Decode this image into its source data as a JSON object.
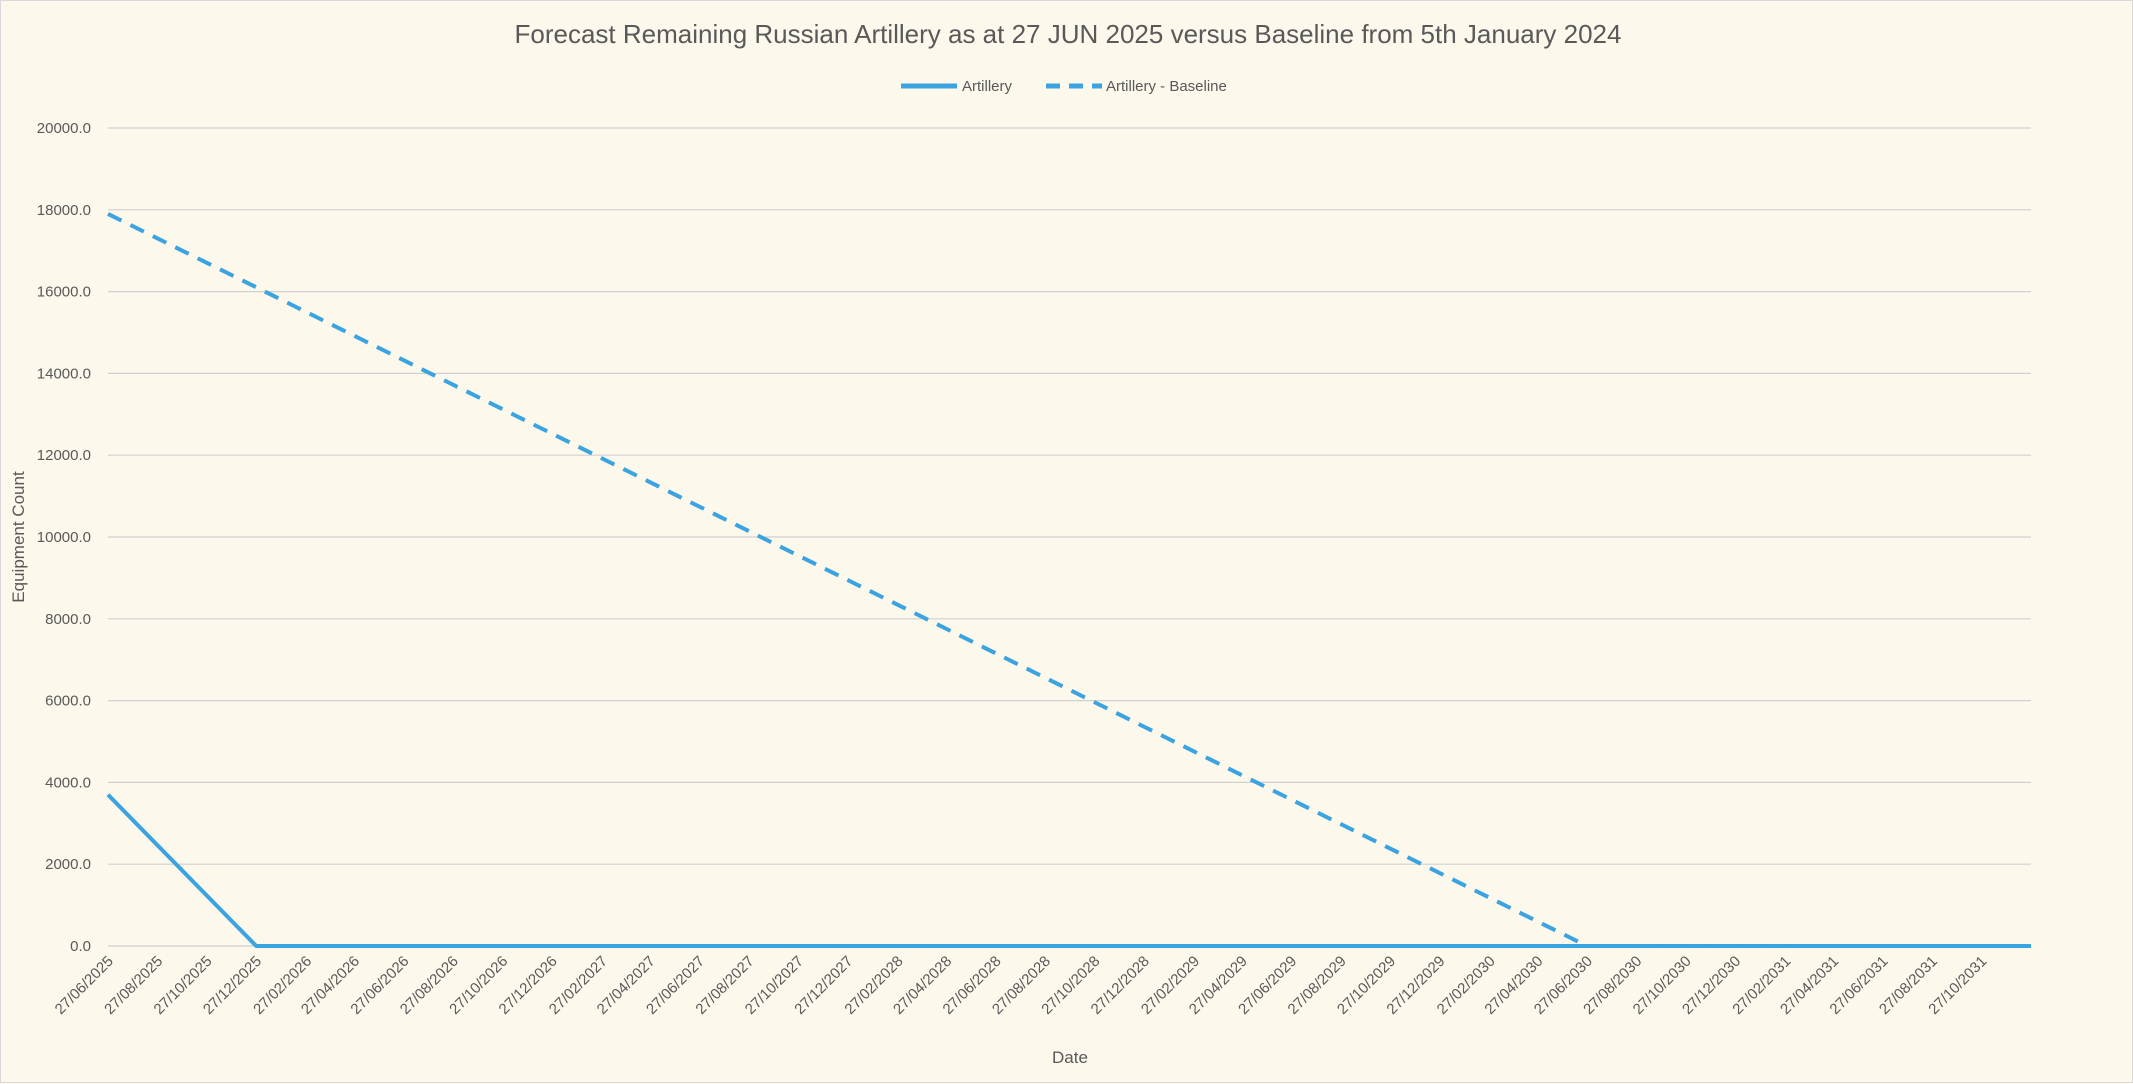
{
  "chart_data": {
    "type": "line",
    "title": "Forecast Remaining Russian Artillery as at 27 JUN 2025 versus Baseline from 5th January 2024",
    "xlabel": "Date",
    "ylabel": "Equipment Count",
    "ylim": [
      0,
      20000
    ],
    "yticks": [
      "0.0",
      "2000.0",
      "4000.0",
      "6000.0",
      "8000.0",
      "10000.0",
      "12000.0",
      "14000.0",
      "16000.0",
      "18000.0",
      "20000.0"
    ],
    "x_tick_labels": [
      "27/06/2025",
      "27/08/2025",
      "27/10/2025",
      "27/12/2025",
      "27/02/2026",
      "27/04/2026",
      "27/06/2026",
      "27/08/2026",
      "27/10/2026",
      "27/12/2026",
      "27/02/2027",
      "27/04/2027",
      "27/06/2027",
      "27/08/2027",
      "27/10/2027",
      "27/12/2027",
      "27/02/2028",
      "27/04/2028",
      "27/06/2028",
      "27/08/2028",
      "27/10/2028",
      "27/12/2028",
      "27/02/2029",
      "27/04/2029",
      "27/06/2029",
      "27/08/2029",
      "27/10/2029",
      "27/12/2029",
      "27/02/2030",
      "27/04/2030",
      "27/06/2030",
      "27/08/2030",
      "27/10/2030",
      "27/12/2030",
      "27/02/2031",
      "27/04/2031",
      "27/06/2031",
      "27/08/2031",
      "27/10/2031"
    ],
    "x_range": [
      "27/06/2025",
      "27/12/2031"
    ],
    "grid": true,
    "legend_position": "top",
    "series": [
      {
        "name": "Artillery",
        "style": "solid",
        "color": "#3aa3e0",
        "points": [
          {
            "x": "27/06/2025",
            "y": 3700
          },
          {
            "x": "27/12/2025",
            "y": 0
          },
          {
            "x": "27/12/2031",
            "y": 0
          }
        ]
      },
      {
        "name": "Artillery - Baseline",
        "style": "dashed",
        "color": "#3aa3e0",
        "points": [
          {
            "x": "27/06/2025",
            "y": 17900
          },
          {
            "x": "27/06/2030",
            "y": 0
          },
          {
            "x": "27/12/2031",
            "y": 0
          }
        ]
      }
    ]
  }
}
